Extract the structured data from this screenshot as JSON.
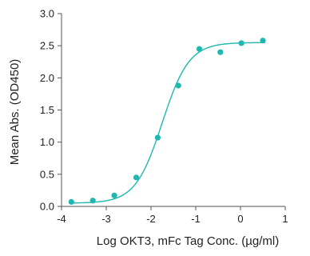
{
  "chart_data": {
    "type": "scatter",
    "xlabel": "Log OKT3, mFc Tag Conc. (µg/ml)",
    "ylabel": "Mean Abs. (OD450)",
    "xlim": [
      -4,
      1
    ],
    "ylim": [
      0,
      3
    ],
    "x_ticks": [
      "-4",
      "-3",
      "-2",
      "-1",
      "0",
      "1"
    ],
    "y_ticks": [
      "0.0",
      "0.5",
      "1.0",
      "1.5",
      "2.0",
      "2.5",
      "3.0"
    ],
    "grid": false,
    "series": [
      {
        "x": [
          -3.78,
          -3.3,
          -2.82,
          -2.33,
          -1.85,
          -1.39,
          -0.92,
          -0.45,
          0.02,
          0.5
        ],
        "y": [
          0.07,
          0.09,
          0.17,
          0.45,
          1.07,
          1.88,
          2.45,
          2.4,
          2.54,
          2.58
        ]
      }
    ],
    "fit_curve": {
      "type": "4PL",
      "bottom": 0.05,
      "top": 2.55,
      "log_ec50": -1.75,
      "hill": 1.45
    },
    "color": "#1fb8b0"
  }
}
